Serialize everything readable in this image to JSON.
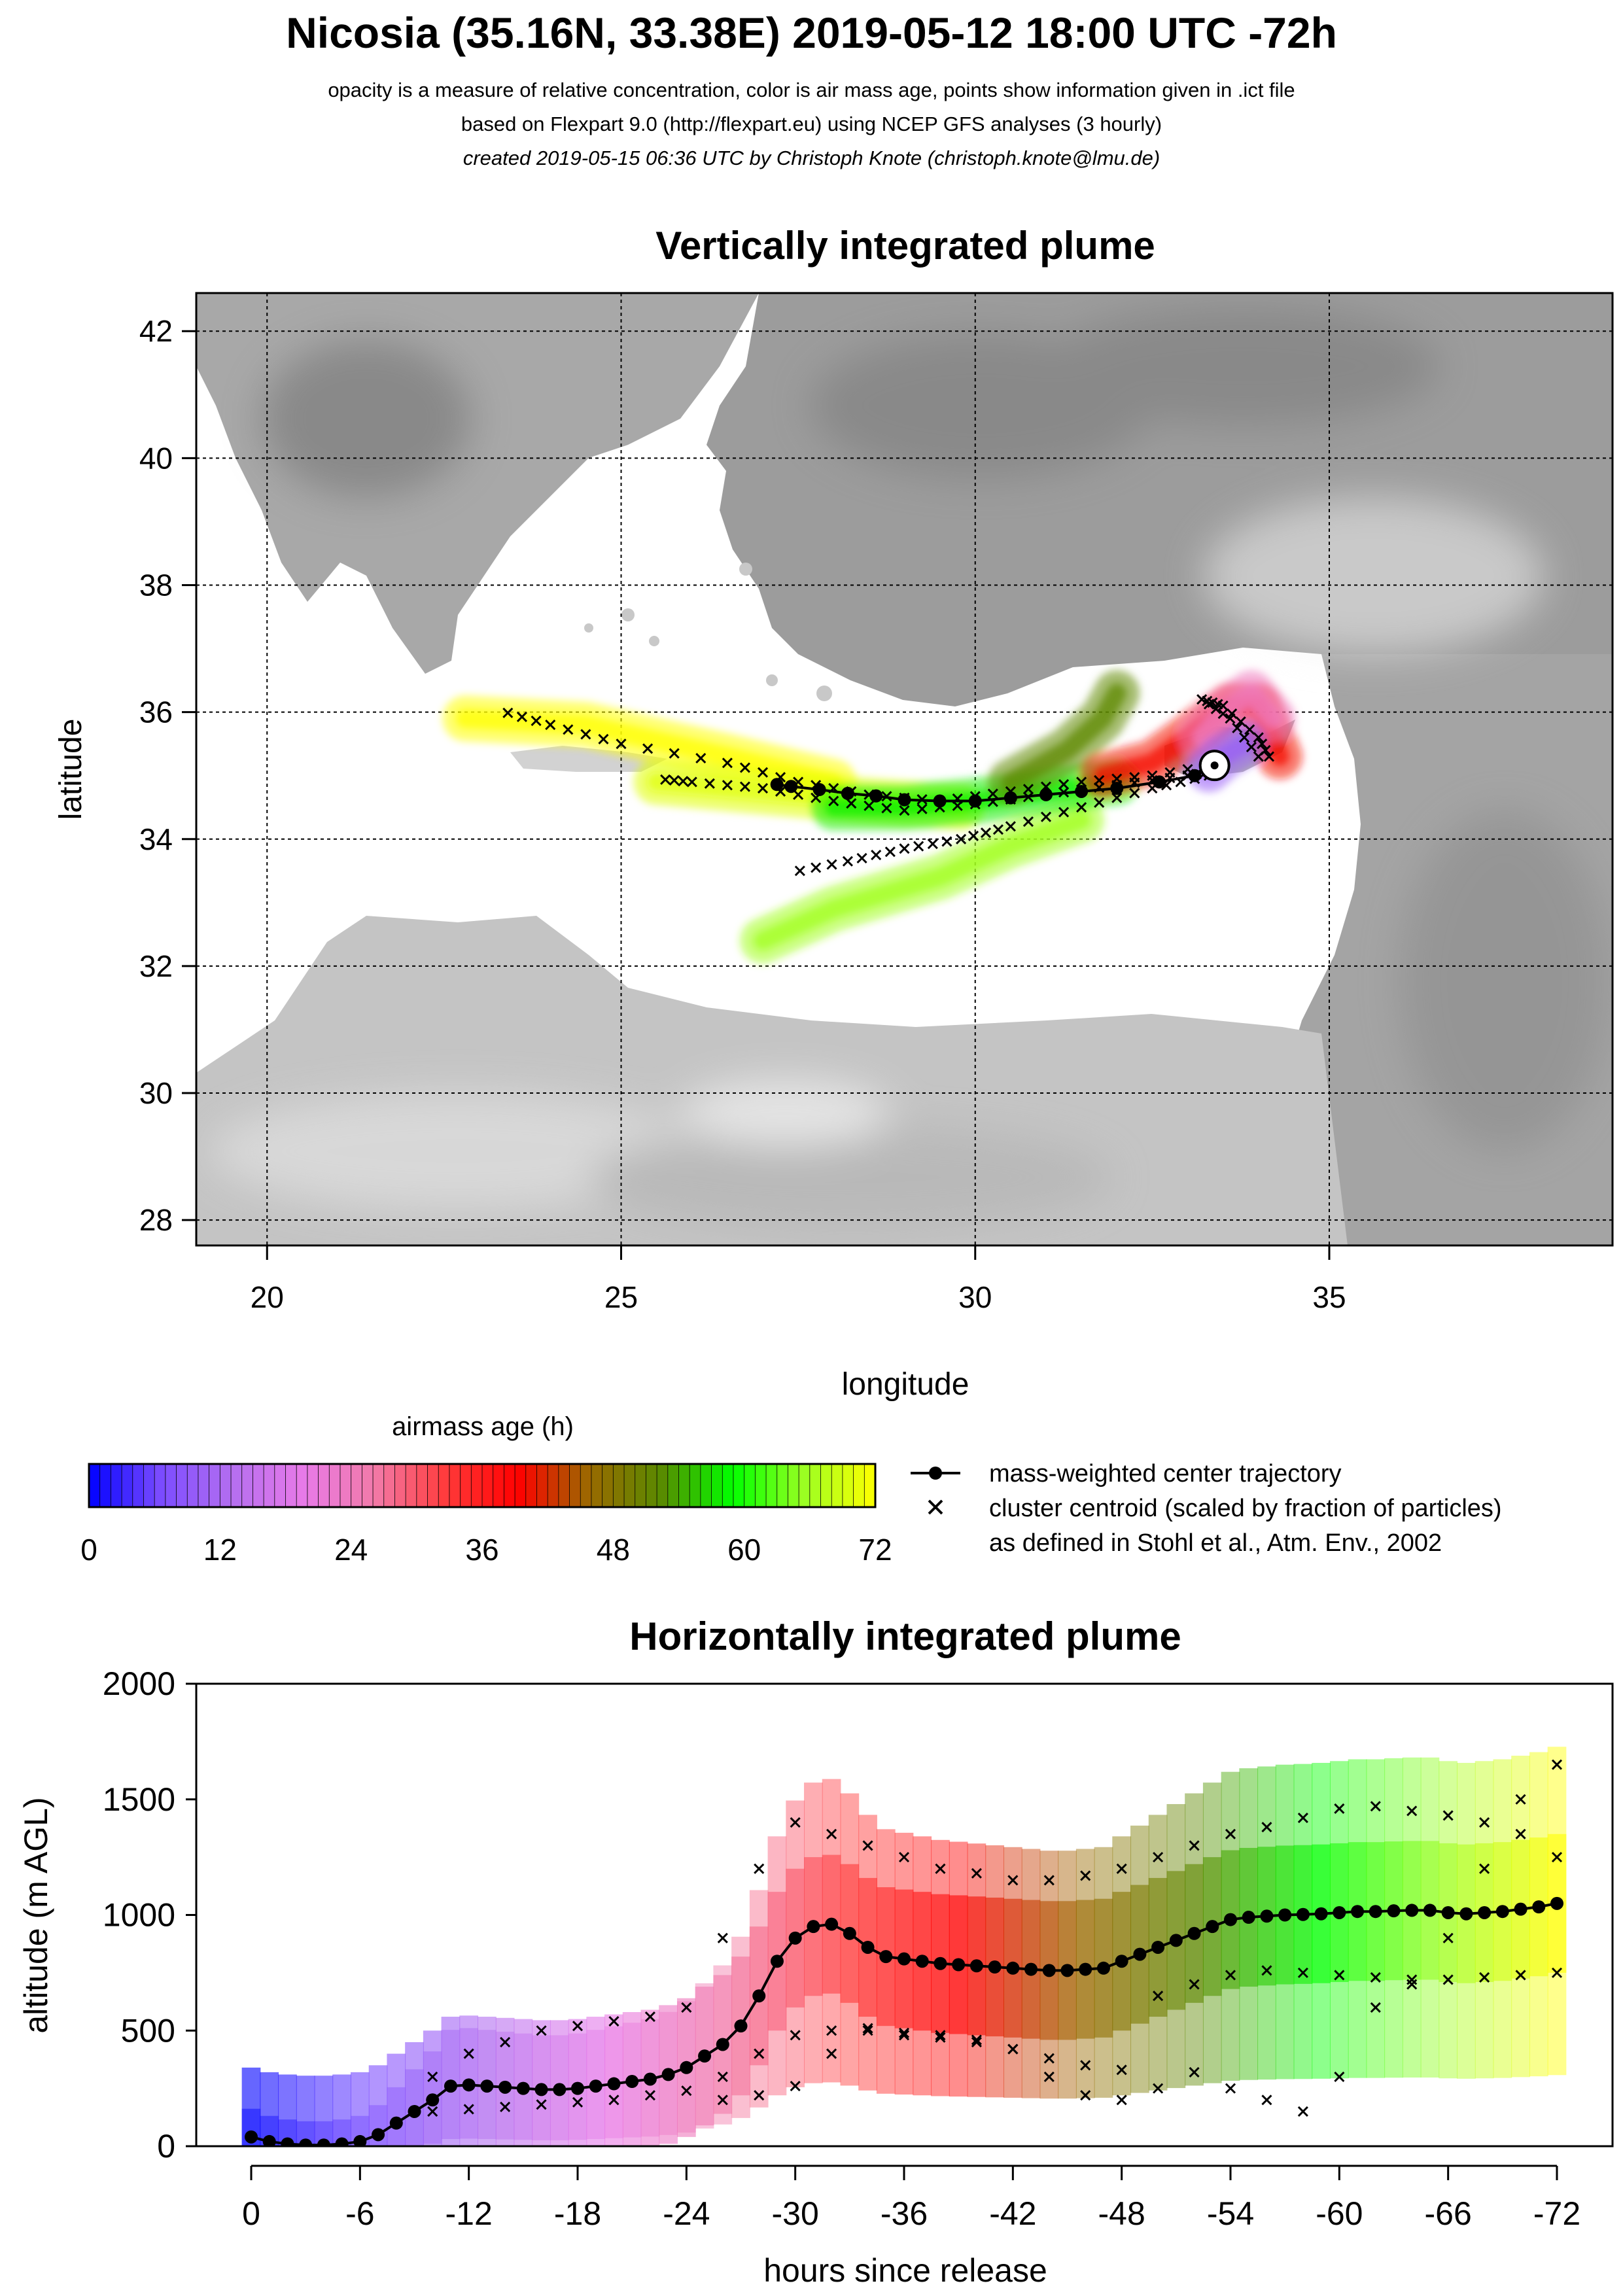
{
  "header": {
    "title": "Nicosia (35.16N, 33.38E) 2019-05-12 18:00 UTC -72h",
    "subtitle_1": "opacity is a measure of relative concentration, color is air mass age, points show information given in .ict file",
    "subtitle_2": "based on Flexpart 9.0 (http://flexpart.eu) using NCEP GFS analyses (3 hourly)",
    "subtitle_3": "created 2019-05-15 06:36 UTC by Christoph Knote (christoph.knote@lmu.de)"
  },
  "colors": {
    "age_scale": [
      "#0000ff",
      "#7b4cff",
      "#b46ef0",
      "#e87ae8",
      "#f27aa8",
      "#ff3a3a",
      "#ff0000",
      "#9a6a00",
      "#5a8a00",
      "#00ff00",
      "#9aff22",
      "#ffff00"
    ],
    "land": "#9a9a9a",
    "land_light": "#cfcfcf",
    "sea": "#ffffff"
  },
  "chart_data": [
    {
      "type": "heatmap",
      "title": "Vertically integrated plume",
      "xlabel": "longitude",
      "ylabel": "latitude",
      "xlim": [
        19,
        39
      ],
      "ylim": [
        27.6,
        42.6
      ],
      "xticks": [
        20,
        25,
        30,
        35
      ],
      "yticks": [
        28,
        30,
        32,
        34,
        36,
        38,
        40,
        42
      ],
      "grid": true,
      "release_point": {
        "lon": 33.38,
        "lat": 35.16
      },
      "center_trajectory": {
        "name": "mass-weighted center trajectory",
        "lon": [
          33.38,
          33.1,
          32.6,
          32.0,
          31.5,
          31.0,
          30.5,
          30.0,
          29.5,
          29.0,
          28.6,
          28.2,
          27.8,
          27.4,
          27.2
        ],
        "lat": [
          35.16,
          35.0,
          34.9,
          34.8,
          34.75,
          34.7,
          34.65,
          34.6,
          34.6,
          34.62,
          34.68,
          34.72,
          34.78,
          34.83,
          34.86
        ]
      },
      "cluster_centroids": [
        {
          "lon": [
            33.5,
            33.0,
            32.0,
            31.0,
            30.0,
            29.0,
            28.0,
            27.0,
            26.0,
            25.5
          ],
          "lat": [
            35.1,
            35.0,
            34.85,
            34.7,
            34.55,
            34.45,
            34.6,
            34.8,
            34.9,
            34.95
          ]
        },
        {
          "lon": [
            33.5,
            32.5,
            31.5,
            30.5,
            29.5,
            28.5,
            27.5,
            26.5,
            25.0,
            24.0,
            23.2
          ],
          "lat": [
            35.2,
            35.0,
            34.9,
            34.75,
            34.6,
            34.7,
            34.9,
            35.2,
            35.5,
            35.8,
            36.05
          ]
        },
        {
          "lon": [
            33.3,
            32.5,
            31.5,
            30.5,
            29.8,
            29.0,
            28.2,
            27.3
          ],
          "lat": [
            35.0,
            34.8,
            34.5,
            34.2,
            34.0,
            33.85,
            33.65,
            33.45
          ]
        },
        {
          "lon": [
            34.0,
            33.6,
            33.2,
            33.5,
            34.0,
            34.2
          ],
          "lat": [
            35.3,
            35.9,
            36.2,
            36.1,
            35.6,
            35.2
          ]
        }
      ],
      "plume_bands": [
        {
          "age_h": 72,
          "lon": [
            22.8,
            24.5,
            26.5,
            28.0
          ],
          "lat": [
            35.9,
            35.8,
            35.3,
            34.9
          ]
        },
        {
          "age_h": 70,
          "lon": [
            25.5,
            27.0,
            28.5,
            29.8
          ],
          "lat": [
            34.9,
            34.75,
            34.6,
            34.5
          ]
        },
        {
          "age_h": 66,
          "lon": [
            27.0,
            28.0,
            29.5,
            30.5,
            31.5
          ],
          "lat": [
            32.4,
            32.9,
            33.4,
            33.9,
            34.3
          ]
        },
        {
          "age_h": 58,
          "lon": [
            28.0,
            29.0,
            30.0,
            31.0,
            32.0
          ],
          "lat": [
            34.5,
            34.5,
            34.6,
            34.75,
            34.9
          ]
        },
        {
          "age_h": 52,
          "lon": [
            30.5,
            31.3,
            31.8,
            32.0
          ],
          "lat": [
            34.9,
            35.4,
            35.9,
            36.3
          ]
        },
        {
          "age_h": 40,
          "lon": [
            31.8,
            32.5,
            33.0,
            33.6,
            34.0,
            34.3
          ],
          "lat": [
            35.0,
            35.2,
            35.6,
            36.1,
            36.1,
            35.3
          ]
        },
        {
          "age_h": 24,
          "lon": [
            33.2,
            33.5,
            33.9,
            34.2
          ],
          "lat": [
            35.6,
            36.0,
            36.3,
            35.9
          ]
        },
        {
          "age_h": 10,
          "lon": [
            33.3,
            33.5,
            33.8
          ],
          "lat": [
            35.1,
            35.3,
            35.5
          ]
        }
      ]
    },
    {
      "type": "line",
      "title": "Horizontally integrated plume",
      "xlabel": "hours since release",
      "ylabel": "altitude (m AGL)",
      "xlim": [
        0,
        -72
      ],
      "ylim": [
        0,
        2000
      ],
      "xtick_labels": [
        "0",
        "-6",
        "-12",
        "-18",
        "-24",
        "-30",
        "-36",
        "-42",
        "-48",
        "-54",
        "-60",
        "-66",
        "-72"
      ],
      "yticks": [
        0,
        500,
        1000,
        1500,
        2000
      ],
      "series": [
        {
          "name": "mass-weighted center trajectory",
          "x": [
            0,
            -1,
            -2,
            -3,
            -4,
            -5,
            -6,
            -7,
            -8,
            -9,
            -10,
            -11,
            -12,
            -13,
            -14,
            -15,
            -16,
            -17,
            -18,
            -19,
            -20,
            -21,
            -22,
            -23,
            -24,
            -25,
            -26,
            -27,
            -28,
            -29,
            -30,
            -31,
            -32,
            -33,
            -34,
            -35,
            -36,
            -37,
            -38,
            -39,
            -40,
            -41,
            -42,
            -43,
            -44,
            -45,
            -46,
            -47,
            -48,
            -49,
            -50,
            -51,
            -52,
            -53,
            -54,
            -55,
            -56,
            -57,
            -58,
            -59,
            -60,
            -61,
            -62,
            -63,
            -64,
            -65,
            -66,
            -67,
            -68,
            -69,
            -70,
            -71,
            -72
          ],
          "y": [
            40,
            20,
            10,
            5,
            5,
            10,
            20,
            50,
            100,
            150,
            200,
            260,
            265,
            260,
            255,
            250,
            245,
            245,
            250,
            260,
            270,
            280,
            290,
            310,
            340,
            390,
            440,
            520,
            650,
            800,
            900,
            950,
            960,
            920,
            860,
            820,
            810,
            800,
            790,
            785,
            780,
            775,
            770,
            765,
            760,
            760,
            765,
            770,
            800,
            830,
            860,
            890,
            920,
            950,
            980,
            990,
            995,
            1000,
            1002,
            1005,
            1010,
            1015,
            1015,
            1018,
            1020,
            1020,
            1010,
            1005,
            1010,
            1015,
            1025,
            1035,
            1050
          ]
        },
        {
          "name": "cluster centroid (scaled by fraction of particles)",
          "x": [
            -10,
            -12,
            -14,
            -16,
            -18,
            -20,
            -22,
            -24,
            -26,
            -28,
            -30,
            -32,
            -34,
            -36,
            -38,
            -40,
            -42,
            -44,
            -46,
            -48,
            -50,
            -52,
            -54,
            -56,
            -58,
            -60,
            -62,
            -64,
            -66,
            -68,
            -70,
            -72
          ],
          "y": [
            300,
            400,
            450,
            500,
            520,
            540,
            560,
            600,
            900,
            1200,
            1400,
            1350,
            1300,
            1250,
            1200,
            1180,
            1150,
            1150,
            1170,
            1200,
            1250,
            1300,
            1350,
            1380,
            1420,
            1460,
            1470,
            1450,
            1430,
            1400,
            1350,
            1250
          ]
        },
        {
          "name": "cluster centroid (scaled by fraction of particles)",
          "x": [
            -10,
            -12,
            -14,
            -16,
            -18,
            -20,
            -22,
            -24,
            -26,
            -28,
            -30,
            -32,
            -34,
            -36,
            -38,
            -40,
            -42,
            -44,
            -46,
            -48,
            -50,
            -52,
            -54,
            -56,
            -58,
            -60,
            -62,
            -64,
            -66,
            -68,
            -70,
            -72
          ],
          "y": [
            150,
            160,
            170,
            180,
            190,
            200,
            220,
            240,
            300,
            400,
            480,
            500,
            510,
            490,
            480,
            460,
            420,
            380,
            350,
            330,
            650,
            700,
            740,
            760,
            750,
            740,
            730,
            720,
            720,
            730,
            740,
            750
          ]
        },
        {
          "name": "cluster centroid (scaled by fraction of particles)",
          "x": [
            -26,
            -28,
            -30,
            -32,
            -34,
            -36,
            -38,
            -40,
            -42,
            -44,
            -46,
            -48,
            -50,
            -52,
            -54,
            -56,
            -58,
            -60,
            -62,
            -64,
            -66,
            -68,
            -70,
            -72
          ],
          "y": [
            200,
            220,
            260,
            400,
            500,
            480,
            470,
            450,
            420,
            300,
            220,
            200,
            250,
            320,
            250,
            200,
            150,
            300,
            600,
            700,
            900,
            1200,
            1500,
            1650
          ]
        }
      ]
    }
  ],
  "colorbar": {
    "title": "airmass age (h)",
    "tick_labels": [
      "0",
      "12",
      "24",
      "36",
      "48",
      "60",
      "72"
    ],
    "range": [
      0,
      72
    ]
  },
  "legend": {
    "line_label": "mass-weighted center trajectory",
    "cross_label": "cluster centroid (scaled by fraction of particles)",
    "note": "as defined in Stohl et al., Atm. Env., 2002"
  }
}
